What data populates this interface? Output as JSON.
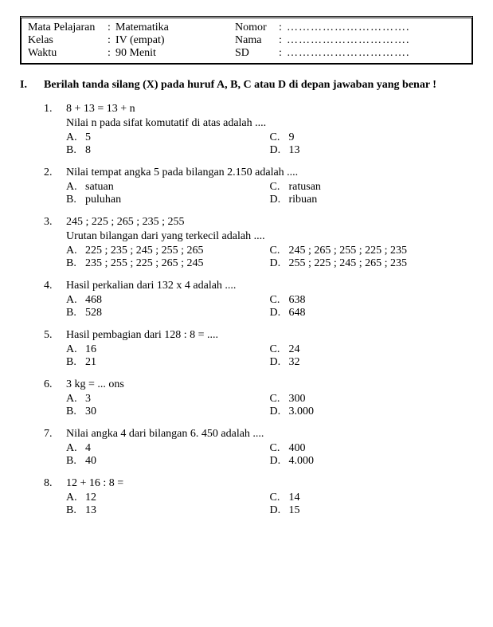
{
  "header": {
    "left": [
      {
        "label": "Mata Pelajaran",
        "value": "Matematika"
      },
      {
        "label": "Kelas",
        "value": "IV (empat)"
      },
      {
        "label": "Waktu",
        "value": "90 Menit"
      }
    ],
    "right": [
      {
        "label": "Nomor",
        "dots": "…………………………."
      },
      {
        "label": "Nama",
        "dots": "…………………………."
      },
      {
        "label": "SD",
        "dots": "…………………………."
      }
    ]
  },
  "section": {
    "number": "I.",
    "instruction": "Berilah tanda silang (X) pada huruf A, B, C atau D di depan jawaban yang benar !"
  },
  "questions": [
    {
      "n": "1.",
      "lines": [
        "8  +  13  =   13  +  n",
        "Nilai n pada sifat komutatif di atas adalah ...."
      ],
      "opts": {
        "A": "5",
        "B": "8",
        "C": "9",
        "D": "13"
      }
    },
    {
      "n": "2.",
      "lines": [
        "Nilai tempat angka 5 pada bilangan 2.150 adalah ...."
      ],
      "opts": {
        "A": "satuan",
        "B": "puluhan",
        "C": "ratusan",
        "D": "ribuan"
      }
    },
    {
      "n": "3.",
      "lines": [
        "245 ;  225 ;  265 ;  235 ;  255",
        "Urutan bilangan dari yang terkecil adalah ...."
      ],
      "opts": {
        "A": "225 ; 235 ; 245 ; 255 ; 265",
        "B": "235 ; 255 ; 225 ; 265 ; 245",
        "C": "245 ; 265 ; 255 ; 225 ; 235",
        "D": "255 ; 225 ; 245 ; 265 ; 235"
      },
      "wide": true
    },
    {
      "n": "4.",
      "lines": [
        "Hasil perkalian dari 132 x 4 adalah ...."
      ],
      "opts": {
        "A": "468",
        "B": "528",
        "C": "638",
        "D": "648"
      }
    },
    {
      "n": "5.",
      "lines": [
        "Hasil pembagian dari 128 : 8 = ...."
      ],
      "opts": {
        "A": "16",
        "B": "21",
        "C": "24",
        "D": "32"
      }
    },
    {
      "n": "6.",
      "lines": [
        "3 kg = ... ons"
      ],
      "opts": {
        "A": "3",
        "B": "30",
        "C": "300",
        "D": "3.000"
      }
    },
    {
      "n": "7.",
      "lines": [
        "Nilai angka 4 dari bilangan 6. 450 adalah ...."
      ],
      "opts": {
        "A": "4",
        "B": "40",
        "C": "400",
        "D": "4.000"
      }
    },
    {
      "n": "8.",
      "lines": [
        "12 + 16 : 8 ="
      ],
      "opts": {
        "A": "12",
        "B": "13",
        "C": "14",
        "D": "15"
      }
    }
  ]
}
